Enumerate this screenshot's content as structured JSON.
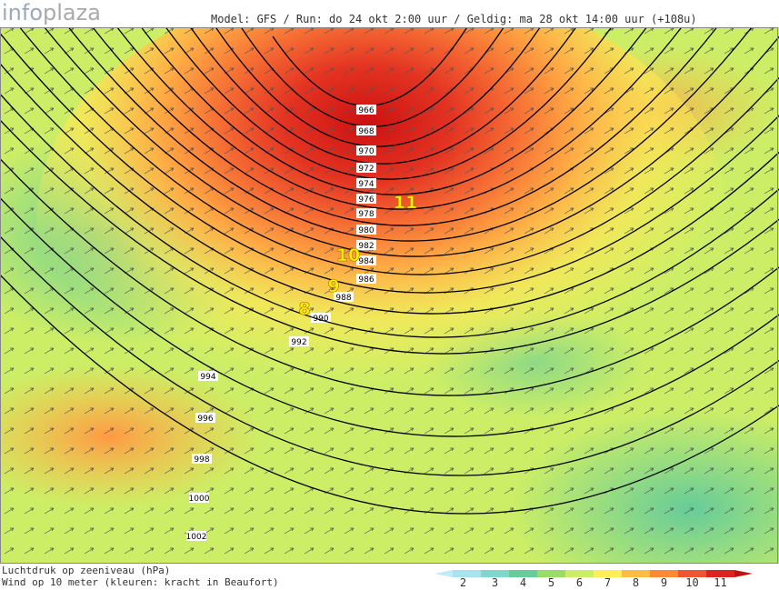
{
  "header": {
    "logo_left": "info",
    "logo_right": "plaza",
    "info": "Model: GFS / Run: do 24 okt 2:00 uur / Geldig: ma 28 okt 14:00 uur (+108u)"
  },
  "map": {
    "isobars": [
      966,
      968,
      970,
      972,
      974,
      976,
      978,
      980,
      982,
      984,
      986,
      988,
      990,
      992,
      994,
      996,
      998,
      1000,
      1002
    ],
    "beaufort_labels": [
      11,
      10,
      9,
      8
    ]
  },
  "legend": {
    "line1": "Luchtdruk op zeeniveau (hPa)",
    "line2": "Wind op 10 meter (kleuren: kracht in Beaufort)",
    "scale": [
      {
        "label": 2,
        "color": "#a8e4f0"
      },
      {
        "label": 3,
        "color": "#80d8cc"
      },
      {
        "label": 4,
        "color": "#66cc99"
      },
      {
        "label": 5,
        "color": "#99dd66"
      },
      {
        "label": 6,
        "color": "#ccee66"
      },
      {
        "label": 7,
        "color": "#ffee55"
      },
      {
        "label": 8,
        "color": "#ffbb44"
      },
      {
        "label": 9,
        "color": "#ff8833"
      },
      {
        "label": 10,
        "color": "#ee5533"
      },
      {
        "label": 11,
        "color": "#dd2222"
      }
    ]
  }
}
